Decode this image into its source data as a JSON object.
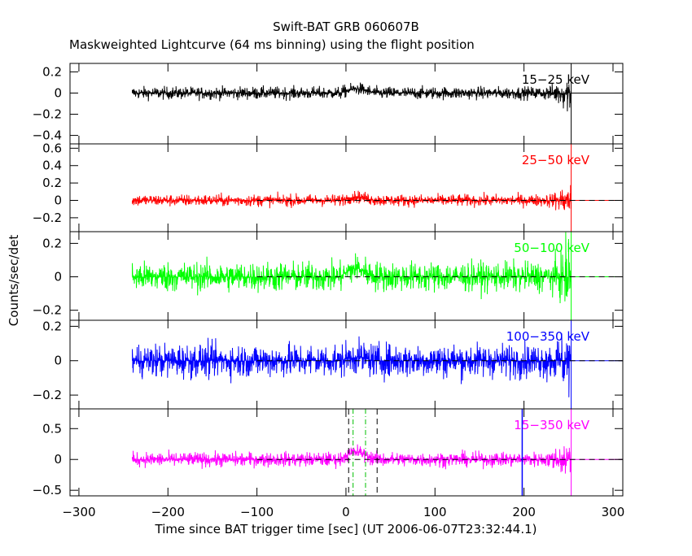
{
  "chart_data": {
    "type": "line",
    "title": "Swift-BAT GRB 060607B",
    "subtitle": "Maskweighted Lightcurve (64 ms binning) using the flight position",
    "xlabel": "Time since BAT trigger time [sec] (UT 2006-06-07T23:32:44.1)",
    "ylabel": "Counts/sec/det",
    "xlim": [
      -310,
      311
    ],
    "xticks": [
      -300,
      -200,
      -100,
      0,
      100,
      200,
      300
    ],
    "xtick_labels": [
      "−300",
      "−200",
      "−100",
      "0",
      "100",
      "200",
      "300"
    ],
    "data_time_range": [
      -240,
      253
    ],
    "reference_lines": {
      "zero_dashed_from": -100,
      "black_dashed": [
        3,
        35
      ],
      "green_dashdot": [
        8,
        22
      ],
      "blue_solid": 198
    },
    "series": [
      {
        "name": "15−25 keV",
        "color": "#000000",
        "ylim": [
          -0.48,
          0.28
        ],
        "yticks": [
          0.2,
          0,
          -0.2,
          -0.4
        ],
        "ytick_labels": [
          "0.2",
          "0",
          "−0.2",
          "−0.4"
        ],
        "noise_sigma": 0.03,
        "burst_level": 0.04,
        "end_spread": 0.3,
        "zero_line": false
      },
      {
        "name": "25−50 keV",
        "color": "#ff0000",
        "ylim": [
          -0.36,
          0.65
        ],
        "yticks": [
          0.6,
          0.4,
          0.2,
          0,
          -0.2
        ],
        "ytick_labels": [
          "0.6",
          "0.4",
          "0.2",
          "0",
          "−0.2"
        ],
        "noise_sigma": 0.035,
        "burst_level": 0.04,
        "end_spread": 0.3,
        "zero_line": true
      },
      {
        "name": "50−100 keV",
        "color": "#00ff00",
        "ylim": [
          -0.26,
          0.27
        ],
        "yticks": [
          0.2,
          0,
          -0.2
        ],
        "ytick_labels": [
          "0.2",
          "0",
          "−0.2"
        ],
        "noise_sigma": 0.045,
        "burst_level": 0.05,
        "end_spread": 0.25,
        "zero_line": true
      },
      {
        "name": "100−350 keV",
        "color": "#0000ff",
        "ylim": [
          -0.28,
          0.235
        ],
        "yticks": [
          0.2,
          0,
          -0.2
        ],
        "ytick_labels": [
          "0.2",
          "0",
          "−0.2"
        ],
        "noise_sigma": 0.05,
        "burst_level": 0.02,
        "end_spread": 0.25,
        "zero_line": true
      },
      {
        "name": "15−350 keV",
        "color": "#ff00ff",
        "ylim": [
          -0.59,
          0.82
        ],
        "yticks": [
          0.5,
          0,
          -0.5
        ],
        "ytick_labels": [
          "0.5",
          "0",
          "−0.5"
        ],
        "noise_sigma": 0.06,
        "burst_level": 0.12,
        "end_spread": 0.6,
        "zero_line": true
      }
    ]
  }
}
